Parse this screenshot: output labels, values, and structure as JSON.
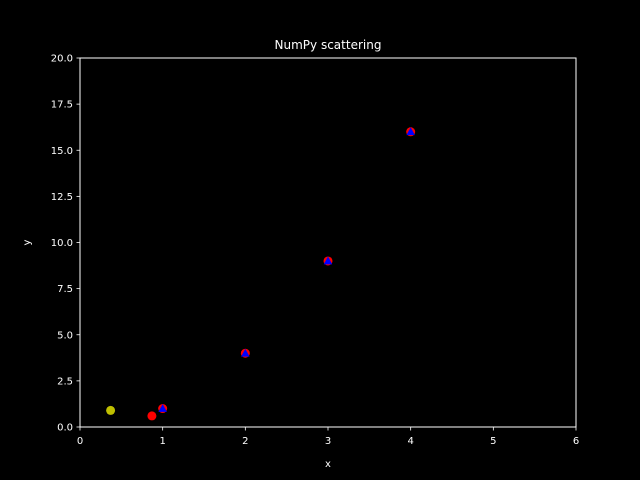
{
  "chart_data": {
    "type": "scatter",
    "title": "NumPy scattering",
    "xlabel": "x",
    "ylabel": "y",
    "xlim": [
      0,
      6
    ],
    "ylim": [
      0,
      20
    ],
    "xticks": [
      "0",
      "1",
      "2",
      "3",
      "4",
      "5",
      "6"
    ],
    "yticks": [
      "0.0",
      "2.5",
      "5.0",
      "7.5",
      "10.0",
      "12.5",
      "15.0",
      "17.5",
      "20.0"
    ],
    "grid": false,
    "legend": "none",
    "background": "#000000",
    "series": [
      {
        "color": "#ff0000",
        "marker": "circle",
        "x": [
          0.87,
          1,
          2,
          3,
          4
        ],
        "y": [
          0.6,
          1,
          4,
          9,
          16
        ]
      },
      {
        "color": "#0000ff",
        "marker": "triangle",
        "x": [
          1,
          2,
          3,
          4
        ],
        "y": [
          1,
          4,
          9,
          16
        ]
      },
      {
        "color": "#bfbf00",
        "marker": "circle",
        "x": [
          0.37
        ],
        "y": [
          0.9
        ]
      }
    ]
  }
}
